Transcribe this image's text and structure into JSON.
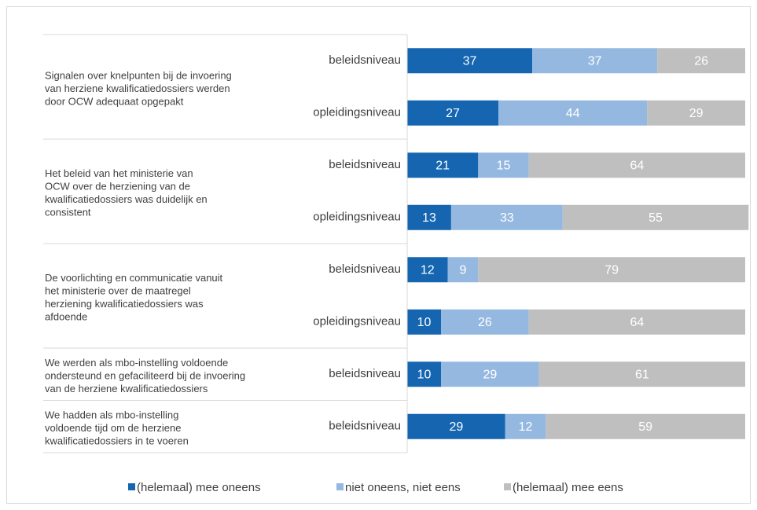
{
  "chart_data": {
    "type": "bar",
    "orientation": "horizontal",
    "stacked": true,
    "xlim": [
      0,
      100
    ],
    "groups": [
      {
        "label": [
          "Signalen over knelpunten bij de invoering",
          "van herziene kwalificatiedossiers werden",
          "door OCW adequaat opgepakt"
        ],
        "categories": [
          "beleidsniveau",
          "opleidingsniveau"
        ]
      },
      {
        "label": [
          "Het beleid van het ministerie van",
          "OCW over de herziening van de",
          "kwalificatiedossiers was duidelijk en",
          "consistent"
        ],
        "categories": [
          "beleidsniveau",
          "opleidingsniveau"
        ]
      },
      {
        "label": [
          "De voorlichting en communicatie vanuit",
          "het ministerie over de maatregel",
          "herziening kwalificatiedossiers was",
          "afdoende"
        ],
        "categories": [
          "beleidsniveau",
          "opleidingsniveau"
        ]
      },
      {
        "label": [
          "We werden als mbo-instelling voldoende",
          "ondersteund en gefaciliteerd bij de invoering",
          "van de herziene kwalificatiedossiers"
        ],
        "categories": [
          "beleidsniveau"
        ]
      },
      {
        "label": [
          "We hadden als mbo-instelling",
          "voldoende tijd om de herziene",
          "kwalificatiedossiers in te voeren"
        ],
        "categories": [
          "beleidsniveau"
        ]
      }
    ],
    "series": [
      {
        "name": "(helemaal) mee oneens",
        "color": "#1565b0",
        "values": [
          37,
          27,
          21,
          13,
          12,
          10,
          10,
          29
        ]
      },
      {
        "name": "niet oneens, niet eens",
        "color": "#95b8e0",
        "values": [
          37,
          44,
          15,
          33,
          9,
          26,
          29,
          12
        ]
      },
      {
        "name": "(helemaal) mee eens",
        "color": "#bfbfbf",
        "values": [
          26,
          29,
          64,
          55,
          79,
          64,
          61,
          59
        ]
      }
    ],
    "legend": "bottom"
  }
}
